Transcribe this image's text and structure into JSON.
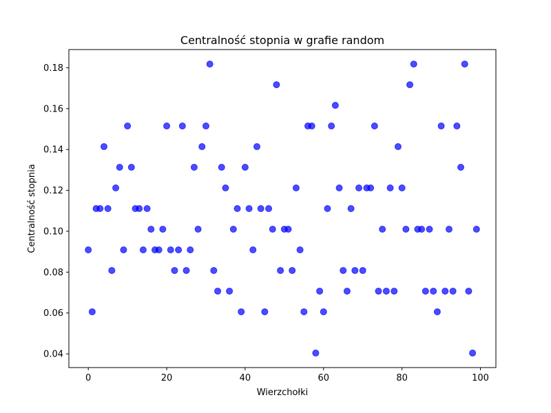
{
  "chart_data": {
    "type": "scatter",
    "title": "Centralność stopnia w grafie random",
    "xlabel": "Wierzchołki",
    "ylabel": "Centralność stopnia",
    "xlim": [
      -4.95,
      103.95
    ],
    "ylim": [
      0.0333,
      0.1889
    ],
    "xticks": [
      0,
      20,
      40,
      60,
      80,
      100
    ],
    "yticks": [
      0.04,
      0.06,
      0.08,
      0.1,
      0.12,
      0.14,
      0.16,
      0.18
    ],
    "ytick_labels": [
      "0.04",
      "0.06",
      "0.08",
      "0.10",
      "0.12",
      "0.14",
      "0.16",
      "0.18"
    ],
    "xtick_labels": [
      "0",
      "20",
      "40",
      "60",
      "80",
      "100"
    ],
    "grid": false,
    "marker_color": "#0000ff",
    "marker_alpha": 0.7,
    "x": [
      0,
      1,
      2,
      3,
      4,
      5,
      6,
      7,
      8,
      9,
      10,
      11,
      12,
      13,
      14,
      15,
      16,
      17,
      18,
      19,
      20,
      21,
      22,
      23,
      24,
      25,
      26,
      27,
      28,
      29,
      30,
      31,
      32,
      33,
      34,
      35,
      36,
      37,
      38,
      39,
      40,
      41,
      42,
      43,
      44,
      45,
      46,
      47,
      48,
      49,
      50,
      51,
      52,
      53,
      54,
      55,
      56,
      57,
      58,
      59,
      60,
      61,
      62,
      63,
      64,
      65,
      66,
      67,
      68,
      69,
      70,
      71,
      72,
      73,
      74,
      75,
      76,
      77,
      78,
      79,
      80,
      81,
      82,
      83,
      84,
      85,
      86,
      87,
      88,
      89,
      90,
      91,
      92,
      93,
      94,
      95,
      96,
      97,
      98,
      99
    ],
    "y": [
      0.0909,
      0.0606,
      0.1111,
      0.1111,
      0.1414,
      0.1111,
      0.0808,
      0.1212,
      0.1313,
      0.0909,
      0.1515,
      0.1313,
      0.1111,
      0.1111,
      0.0909,
      0.1111,
      0.101,
      0.0909,
      0.0909,
      0.101,
      0.1515,
      0.0909,
      0.0808,
      0.0909,
      0.1515,
      0.0808,
      0.0909,
      0.1313,
      0.101,
      0.1414,
      0.1515,
      0.1818,
      0.0808,
      0.0707,
      0.1313,
      0.1212,
      0.0707,
      0.101,
      0.1111,
      0.0606,
      0.1313,
      0.1111,
      0.0909,
      0.1414,
      0.1111,
      0.0606,
      0.1111,
      0.101,
      0.1717,
      0.0808,
      0.101,
      0.101,
      0.0808,
      0.1212,
      0.0909,
      0.0606,
      0.1515,
      0.1515,
      0.0404,
      0.0707,
      0.0606,
      0.1111,
      0.1515,
      0.1616,
      0.1212,
      0.0808,
      0.0707,
      0.1111,
      0.0808,
      0.1212,
      0.0808,
      0.1212,
      0.1212,
      0.1515,
      0.0707,
      0.101,
      0.0707,
      0.1212,
      0.0707,
      0.1414,
      0.1212,
      0.101,
      0.1717,
      0.1818,
      0.101,
      0.101,
      0.0707,
      0.101,
      0.0707,
      0.0606,
      0.1515,
      0.0707,
      0.101,
      0.0707,
      0.1515,
      0.1313,
      0.1818,
      0.0707,
      0.0404,
      0.101
    ]
  }
}
